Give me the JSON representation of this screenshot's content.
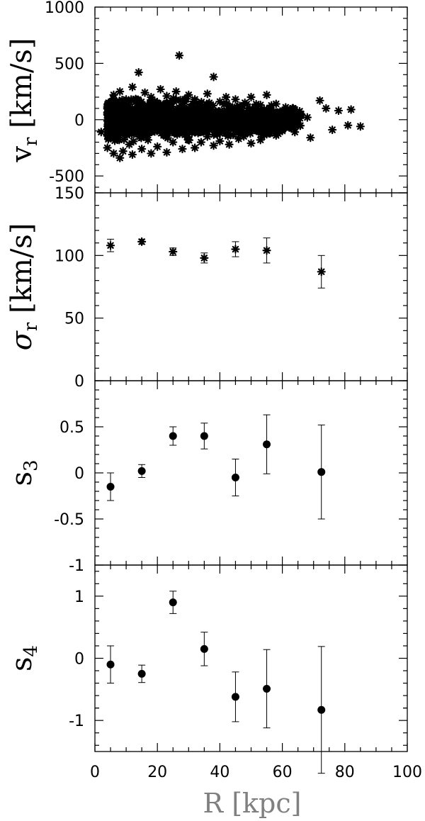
{
  "chart_data": [
    {
      "type": "scatter",
      "ylabel": "v_r [km/s]",
      "xlabel": "",
      "xlim": [
        0,
        100
      ],
      "ylim": [
        -650,
        1000
      ],
      "yticks": [
        1000,
        500,
        0,
        -500
      ],
      "ytick_labels": [
        "1000",
        "500",
        "0",
        "-500"
      ],
      "note": "dense cloud of individual stars",
      "points": [
        {
          "x": 2,
          "y": -110
        },
        {
          "x": 4,
          "y": 60
        },
        {
          "x": 4,
          "y": -250
        },
        {
          "x": 5,
          "y": 150
        },
        {
          "x": 5,
          "y": -60
        },
        {
          "x": 6,
          "y": -300
        },
        {
          "x": 6,
          "y": 220
        },
        {
          "x": 7,
          "y": -170
        },
        {
          "x": 7,
          "y": 40
        },
        {
          "x": 8,
          "y": -340
        },
        {
          "x": 8,
          "y": 250
        },
        {
          "x": 9,
          "y": -10
        },
        {
          "x": 9,
          "y": -280
        },
        {
          "x": 10,
          "y": 180
        },
        {
          "x": 10,
          "y": -120
        },
        {
          "x": 11,
          "y": 80
        },
        {
          "x": 11,
          "y": -220
        },
        {
          "x": 12,
          "y": 290
        },
        {
          "x": 12,
          "y": -310
        },
        {
          "x": 13,
          "y": 10
        },
        {
          "x": 13,
          "y": 160
        },
        {
          "x": 14,
          "y": -90
        },
        {
          "x": 14,
          "y": 420
        },
        {
          "x": 15,
          "y": -260
        },
        {
          "x": 15,
          "y": 110
        },
        {
          "x": 16,
          "y": -20
        },
        {
          "x": 16,
          "y": 240
        },
        {
          "x": 17,
          "y": -180
        },
        {
          "x": 17,
          "y": 60
        },
        {
          "x": 18,
          "y": -300
        },
        {
          "x": 18,
          "y": 200
        },
        {
          "x": 19,
          "y": -50
        },
        {
          "x": 20,
          "y": 130
        },
        {
          "x": 20,
          "y": -240
        },
        {
          "x": 21,
          "y": 30
        },
        {
          "x": 21,
          "y": 270
        },
        {
          "x": 22,
          "y": -140
        },
        {
          "x": 22,
          "y": 90
        },
        {
          "x": 23,
          "y": -290
        },
        {
          "x": 23,
          "y": 210
        },
        {
          "x": 24,
          "y": -70
        },
        {
          "x": 25,
          "y": 170
        },
        {
          "x": 25,
          "y": -200
        },
        {
          "x": 26,
          "y": 40
        },
        {
          "x": 26,
          "y": 250
        },
        {
          "x": 27,
          "y": -120
        },
        {
          "x": 27,
          "y": 570
        },
        {
          "x": 28,
          "y": -260
        },
        {
          "x": 28,
          "y": 100
        },
        {
          "x": 29,
          "y": -30
        },
        {
          "x": 30,
          "y": 220
        },
        {
          "x": 30,
          "y": -180
        },
        {
          "x": 31,
          "y": 70
        },
        {
          "x": 32,
          "y": -250
        },
        {
          "x": 32,
          "y": 180
        },
        {
          "x": 33,
          "y": -60
        },
        {
          "x": 34,
          "y": 140
        },
        {
          "x": 34,
          "y": -200
        },
        {
          "x": 35,
          "y": 20
        },
        {
          "x": 36,
          "y": 230
        },
        {
          "x": 36,
          "y": -150
        },
        {
          "x": 37,
          "y": 90
        },
        {
          "x": 38,
          "y": -230
        },
        {
          "x": 38,
          "y": 380
        },
        {
          "x": 39,
          "y": -40
        },
        {
          "x": 40,
          "y": 160
        },
        {
          "x": 40,
          "y": -190
        },
        {
          "x": 41,
          "y": 50
        },
        {
          "x": 42,
          "y": -120
        },
        {
          "x": 42,
          "y": 200
        },
        {
          "x": 43,
          "y": -220
        },
        {
          "x": 44,
          "y": 110
        },
        {
          "x": 45,
          "y": -80
        },
        {
          "x": 45,
          "y": 180
        },
        {
          "x": 46,
          "y": -170
        },
        {
          "x": 47,
          "y": 30
        },
        {
          "x": 48,
          "y": 150
        },
        {
          "x": 48,
          "y": -130
        },
        {
          "x": 49,
          "y": -20
        },
        {
          "x": 50,
          "y": 200
        },
        {
          "x": 50,
          "y": -210
        },
        {
          "x": 51,
          "y": 80
        },
        {
          "x": 52,
          "y": -100
        },
        {
          "x": 53,
          "y": 130
        },
        {
          "x": 53,
          "y": -180
        },
        {
          "x": 54,
          "y": 10
        },
        {
          "x": 55,
          "y": 220
        },
        {
          "x": 55,
          "y": -130
        },
        {
          "x": 56,
          "y": 60
        },
        {
          "x": 57,
          "y": -60
        },
        {
          "x": 58,
          "y": 140
        },
        {
          "x": 58,
          "y": -140
        },
        {
          "x": 59,
          "y": 20
        },
        {
          "x": 60,
          "y": -100
        },
        {
          "x": 61,
          "y": 90
        },
        {
          "x": 62,
          "y": -40
        },
        {
          "x": 63,
          "y": 60
        },
        {
          "x": 64,
          "y": -110
        },
        {
          "x": 65,
          "y": 10
        },
        {
          "x": 66,
          "y": 50
        },
        {
          "x": 68,
          "y": 20
        },
        {
          "x": 69,
          "y": -160
        },
        {
          "x": 72,
          "y": 170
        },
        {
          "x": 74,
          "y": 100
        },
        {
          "x": 76,
          "y": -90
        },
        {
          "x": 78,
          "y": 80
        },
        {
          "x": 81,
          "y": -50
        },
        {
          "x": 82,
          "y": 90
        },
        {
          "x": 85,
          "y": -60
        }
      ]
    },
    {
      "type": "scatter",
      "ylabel": "σ_r [km/s]",
      "xlabel": "",
      "xlim": [
        0,
        100
      ],
      "ylim": [
        0,
        150
      ],
      "yticks": [
        150,
        100,
        50,
        0
      ],
      "ytick_labels": [
        "150",
        "100",
        "50",
        "0"
      ],
      "points": [
        {
          "x": 5,
          "y": 108,
          "err": 5
        },
        {
          "x": 15,
          "y": 111,
          "err": 2
        },
        {
          "x": 25,
          "y": 103,
          "err": 3
        },
        {
          "x": 35,
          "y": 98,
          "err": 4
        },
        {
          "x": 45,
          "y": 105,
          "err": 6
        },
        {
          "x": 55,
          "y": 104,
          "err": 10
        },
        {
          "x": 72.5,
          "y": 87,
          "err": 13
        }
      ]
    },
    {
      "type": "scatter",
      "ylabel": "s_3",
      "xlabel": "",
      "xlim": [
        0,
        100
      ],
      "ylim": [
        -1,
        1
      ],
      "yticks": [
        0.5,
        0,
        -0.5,
        -1
      ],
      "ytick_labels": [
        "0.5",
        "0",
        "-0.5",
        "-1"
      ],
      "points": [
        {
          "x": 5,
          "y": -0.15,
          "err": 0.15
        },
        {
          "x": 15,
          "y": 0.02,
          "err": 0.07
        },
        {
          "x": 25,
          "y": 0.4,
          "err": 0.1
        },
        {
          "x": 35,
          "y": 0.4,
          "err": 0.14
        },
        {
          "x": 45,
          "y": -0.05,
          "err": 0.2
        },
        {
          "x": 55,
          "y": 0.31,
          "err": 0.32
        },
        {
          "x": 72.5,
          "y": 0.01,
          "err": 0.51
        }
      ]
    },
    {
      "type": "scatter",
      "ylabel": "s_4",
      "xlabel": "R [kpc]",
      "xlim": [
        0,
        100
      ],
      "ylim": [
        -1.5,
        1.5
      ],
      "yticks": [
        1,
        0,
        -1
      ],
      "ytick_labels": [
        "1",
        "0",
        "-1"
      ],
      "xticks": [
        0,
        20,
        40,
        60,
        80,
        100
      ],
      "xtick_labels": [
        "0",
        "20",
        "40",
        "60",
        "80",
        "100"
      ],
      "points": [
        {
          "x": 5,
          "y": -0.1,
          "err": 0.3
        },
        {
          "x": 15,
          "y": -0.25,
          "err": 0.14
        },
        {
          "x": 25,
          "y": 0.9,
          "err": 0.18
        },
        {
          "x": 35,
          "y": 0.15,
          "err": 0.27
        },
        {
          "x": 45,
          "y": -0.62,
          "err": 0.4
        },
        {
          "x": 55,
          "y": -0.49,
          "err": 0.63
        },
        {
          "x": 72.5,
          "y": -0.83,
          "err": 1.02
        }
      ]
    }
  ]
}
